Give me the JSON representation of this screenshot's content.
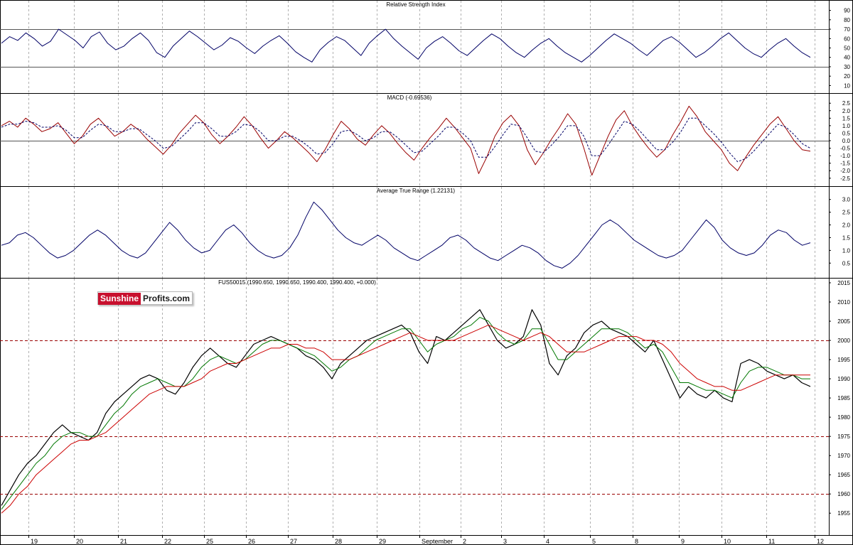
{
  "colors": {
    "rsi_line": "#000066",
    "macd_line": "#990000",
    "signal_line": "#000066",
    "atr_line": "#000066",
    "price_line": "#000000",
    "ma_fast": "#007700",
    "ma_slow": "#cc0000",
    "reference_line_rsi": "#555555",
    "reference_line_price": "#990000",
    "grid": "#b0b0b0",
    "logo_red": "#c8102e"
  },
  "logo": {
    "part1": "Sunshine",
    "part2": "Profits.com"
  },
  "chart_data": [
    {
      "type": "line",
      "title": "Relative Strength Index",
      "y_ticks": [
        "90",
        "80",
        "70",
        "60",
        "50",
        "40",
        "30",
        "20",
        "10"
      ],
      "ylim": [
        5,
        95
      ],
      "reference_lines": [
        70,
        30
      ],
      "series": [
        {
          "values": [
            55,
            62,
            58,
            66,
            60,
            52,
            57,
            70,
            64,
            58,
            50,
            62,
            67,
            55,
            48,
            52,
            60,
            66,
            58,
            45,
            40,
            52,
            60,
            68,
            62,
            55,
            48,
            53,
            61,
            57,
            50,
            44,
            52,
            58,
            63,
            55,
            46,
            40,
            35,
            48,
            56,
            62,
            58,
            50,
            42,
            55,
            63,
            70,
            60,
            52,
            45,
            38,
            50,
            57,
            62,
            55,
            47,
            42,
            50,
            58,
            65,
            60,
            52,
            45,
            40,
            48,
            55,
            60,
            52,
            45,
            40,
            35,
            42,
            50,
            58,
            65,
            60,
            55,
            48,
            42,
            50,
            58,
            62,
            56,
            48,
            40,
            45,
            52,
            60,
            66,
            58,
            50,
            44,
            40,
            48,
            55,
            60,
            52,
            45,
            40
          ]
        }
      ]
    },
    {
      "type": "line",
      "title": "MACD (-0.69536)",
      "y_ticks": [
        "2.5",
        "2.0",
        "1.5",
        "1.0",
        "0.5",
        "0.0",
        "-0.5",
        "-1.0",
        "-1.5",
        "-2.0",
        "-2.5"
      ],
      "ylim": [
        -2.7,
        2.7
      ],
      "reference_lines": [
        0
      ],
      "series": [
        {
          "values": [
            1.0,
            1.3,
            0.9,
            1.5,
            1.1,
            0.6,
            0.8,
            1.2,
            0.5,
            -0.2,
            0.3,
            1.1,
            1.5,
            0.9,
            0.3,
            0.6,
            1.1,
            0.7,
            0.1,
            -0.4,
            -0.9,
            -0.3,
            0.5,
            1.1,
            1.7,
            1.2,
            0.4,
            -0.2,
            0.3,
            0.9,
            1.6,
            1.0,
            0.2,
            -0.5,
            0.0,
            0.6,
            0.2,
            -0.3,
            -0.8,
            -1.4,
            -0.6,
            0.4,
            1.3,
            0.8,
            0.1,
            -0.3,
            0.4,
            1.0,
            0.5,
            -0.2,
            -0.8,
            -1.3,
            -0.5,
            0.2,
            0.8,
            1.5,
            0.9,
            0.2,
            -0.5,
            -2.2,
            -1.1,
            0.3,
            1.2,
            1.7,
            1.0,
            -0.6,
            -1.6,
            -0.8,
            0.1,
            0.9,
            1.8,
            1.1,
            -0.5,
            -2.3,
            -1.0,
            0.3,
            1.4,
            2.0,
            1.0,
            0.2,
            -0.5,
            -1.1,
            -0.6,
            0.4,
            1.3,
            2.3,
            1.6,
            0.6,
            0.0,
            -0.6,
            -1.5,
            -2.0,
            -1.1,
            -0.3,
            0.4,
            1.1,
            1.6,
            0.8,
            0.0,
            -0.6,
            -0.7
          ]
        },
        {
          "values": [
            0.9,
            1.1,
            1.1,
            1.3,
            1.2,
            0.9,
            0.9,
            1.0,
            0.7,
            0.2,
            0.2,
            0.7,
            1.1,
            1.0,
            0.6,
            0.6,
            0.8,
            0.8,
            0.4,
            0.0,
            -0.5,
            -0.4,
            0.1,
            0.6,
            1.2,
            1.2,
            0.8,
            0.3,
            0.3,
            0.6,
            1.1,
            1.0,
            0.6,
            0.0,
            0.0,
            0.3,
            0.3,
            0.0,
            -0.4,
            -0.9,
            -0.8,
            -0.2,
            0.6,
            0.7,
            0.4,
            0.0,
            0.2,
            0.6,
            0.6,
            0.2,
            -0.3,
            -0.8,
            -0.7,
            -0.2,
            0.3,
            0.9,
            0.9,
            0.5,
            0.0,
            -1.1,
            -1.1,
            -0.4,
            0.4,
            1.1,
            1.0,
            0.2,
            -0.7,
            -0.8,
            -0.3,
            0.3,
            1.0,
            1.0,
            0.3,
            -1.0,
            -1.0,
            -0.3,
            0.5,
            1.3,
            1.1,
            0.6,
            0.0,
            -0.6,
            -0.6,
            -0.1,
            0.6,
            1.5,
            1.5,
            1.0,
            0.5,
            -0.1,
            -0.8,
            -1.4,
            -1.2,
            -0.7,
            -0.1,
            0.5,
            1.1,
            0.9,
            0.4,
            -0.2,
            -0.5
          ]
        }
      ]
    },
    {
      "type": "line",
      "title": "Average True Range (1.22131)",
      "y_ticks": [
        "3.0",
        "2.5",
        "2.0",
        "1.5",
        "1.0",
        "0.5"
      ],
      "ylim": [
        0.2,
        3.3
      ],
      "series": [
        {
          "values": [
            1.2,
            1.3,
            1.6,
            1.7,
            1.5,
            1.2,
            0.9,
            0.7,
            0.8,
            1.0,
            1.3,
            1.6,
            1.8,
            1.6,
            1.3,
            1.0,
            0.8,
            0.7,
            0.9,
            1.3,
            1.7,
            2.1,
            1.8,
            1.4,
            1.1,
            0.9,
            1.0,
            1.4,
            1.8,
            2.0,
            1.7,
            1.3,
            1.0,
            0.8,
            0.7,
            0.8,
            1.1,
            1.6,
            2.3,
            2.9,
            2.6,
            2.2,
            1.8,
            1.5,
            1.3,
            1.2,
            1.4,
            1.6,
            1.4,
            1.1,
            0.9,
            0.7,
            0.6,
            0.8,
            1.0,
            1.2,
            1.5,
            1.6,
            1.4,
            1.1,
            0.9,
            0.7,
            0.6,
            0.8,
            1.0,
            1.2,
            1.1,
            0.9,
            0.6,
            0.4,
            0.3,
            0.5,
            0.8,
            1.2,
            1.6,
            2.0,
            2.2,
            2.0,
            1.7,
            1.4,
            1.2,
            1.0,
            0.8,
            0.7,
            0.8,
            1.0,
            1.4,
            1.8,
            2.2,
            1.9,
            1.4,
            1.1,
            0.9,
            0.8,
            0.9,
            1.2,
            1.6,
            1.8,
            1.7,
            1.4,
            1.2,
            1.3
          ]
        }
      ]
    },
    {
      "type": "line",
      "title": "FUS50015 (1990.650, 1990.650, 1990.400, 1990.400, +0.000)",
      "y_ticks": [
        "2015",
        "2010",
        "2005",
        "2000",
        "1995",
        "1990",
        "1985",
        "1980",
        "1975",
        "1970",
        "1965",
        "1960",
        "1955"
      ],
      "ylim": [
        1953,
        2015
      ],
      "reference_lines": [
        2000,
        1975,
        1960
      ],
      "x_ticks": [
        "19",
        "20",
        "21",
        "22",
        "25",
        "26",
        "27",
        "28",
        "29",
        "September",
        "2",
        "3",
        "4",
        "5",
        "8",
        "9",
        "10",
        "11",
        "12"
      ],
      "series": [
        {
          "values": [
            1957,
            1961,
            1965,
            1968,
            1970,
            1973,
            1976,
            1978,
            1976,
            1975,
            1974,
            1976,
            1981,
            1984,
            1986,
            1988,
            1990,
            1991,
            1990,
            1987,
            1986,
            1989,
            1993,
            1996,
            1998,
            1996,
            1994,
            1993,
            1996,
            1999,
            2000,
            2001,
            2000,
            1999,
            1998,
            1996,
            1995,
            1993,
            1990,
            1994,
            1996,
            1998,
            2000,
            2001,
            2002,
            2003,
            2004,
            2002,
            1997,
            1994,
            2001,
            2000,
            2002,
            2004,
            2006,
            2008,
            2004,
            2000,
            1998,
            1999,
            2001,
            2008,
            2004,
            1994,
            1991,
            1996,
            1998,
            2002,
            2004,
            2005,
            2003,
            2002,
            2001,
            1999,
            1997,
            2000,
            1995,
            1990,
            1985,
            1988,
            1986,
            1985,
            1987,
            1985,
            1984,
            1994,
            1995,
            1994,
            1992,
            1991,
            1990,
            1991,
            1989,
            1988
          ]
        },
        {
          "values": [
            1956,
            1959,
            1962,
            1965,
            1968,
            1970,
            1973,
            1975,
            1976,
            1976,
            1975,
            1975,
            1978,
            1981,
            1983,
            1986,
            1988,
            1989,
            1990,
            1989,
            1988,
            1988,
            1990,
            1993,
            1995,
            1996,
            1995,
            1994,
            1995,
            1997,
            1999,
            2000,
            2000,
            1999,
            1998,
            1997,
            1996,
            1994,
            1992,
            1993,
            1995,
            1996,
            1998,
            2000,
            2001,
            2002,
            2003,
            2003,
            2000,
            1997,
            1999,
            2000,
            2001,
            2003,
            2004,
            2006,
            2005,
            2002,
            2000,
            1999,
            2000,
            2003,
            2003,
            1999,
            1995,
            1995,
            1997,
            1999,
            2001,
            2003,
            2003,
            2003,
            2002,
            2000,
            1998,
            1999,
            1997,
            1993,
            1989,
            1989,
            1988,
            1987,
            1987,
            1986,
            1985,
            1989,
            1992,
            1993,
            1993,
            1992,
            1991,
            1991,
            1990,
            1990
          ]
        },
        {
          "values": [
            1955,
            1957,
            1960,
            1962,
            1965,
            1967,
            1969,
            1971,
            1973,
            1974,
            1974,
            1975,
            1976,
            1978,
            1980,
            1982,
            1984,
            1986,
            1987,
            1988,
            1988,
            1988,
            1989,
            1990,
            1992,
            1993,
            1994,
            1994,
            1995,
            1996,
            1997,
            1998,
            1998,
            1999,
            1999,
            1998,
            1998,
            1997,
            1995,
            1995,
            1995,
            1996,
            1997,
            1998,
            1999,
            2000,
            2001,
            2002,
            2001,
            2000,
            2000,
            2000,
            2000,
            2001,
            2002,
            2003,
            2004,
            2003,
            2002,
            2001,
            2000,
            2001,
            2002,
            2001,
            1999,
            1997,
            1997,
            1997,
            1998,
            1999,
            2000,
            2001,
            2001,
            2001,
            2000,
            2000,
            1999,
            1997,
            1994,
            1992,
            1990,
            1989,
            1988,
            1988,
            1987,
            1987,
            1988,
            1989,
            1990,
            1991,
            1991,
            1991,
            1991,
            1991
          ]
        }
      ]
    }
  ]
}
